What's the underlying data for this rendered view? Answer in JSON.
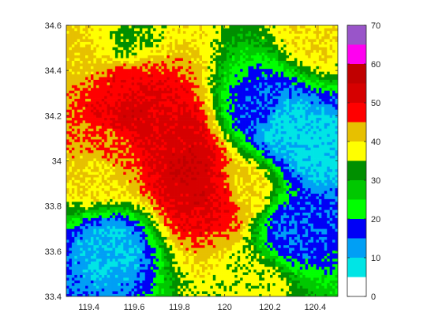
{
  "chart_data": {
    "type": "heatmap",
    "title": "",
    "xlabel": "",
    "ylabel": "",
    "xlim": [
      119.3,
      120.5
    ],
    "ylim": [
      33.4,
      34.6
    ],
    "x_ticks": [
      "119.4",
      "119.6",
      "119.8",
      "120",
      "120.2",
      "120.4"
    ],
    "x_tick_values": [
      119.4,
      119.6,
      119.8,
      120.0,
      120.2,
      120.4
    ],
    "y_ticks": [
      "33.4",
      "33.6",
      "33.8",
      "34",
      "34.2",
      "34.4",
      "34.6"
    ],
    "y_tick_values": [
      33.4,
      33.6,
      33.8,
      34.0,
      34.2,
      34.4,
      34.6
    ],
    "colorbar": {
      "range": [
        0,
        70
      ],
      "ticks": [
        "0",
        "10",
        "20",
        "30",
        "40",
        "50",
        "60",
        "70"
      ],
      "tick_values": [
        0,
        10,
        20,
        30,
        40,
        50,
        60,
        70
      ],
      "levels": [
        {
          "from": 0,
          "to": 5,
          "color": "#ffffff"
        },
        {
          "from": 5,
          "to": 10,
          "color": "#00e5e5"
        },
        {
          "from": 10,
          "to": 15,
          "color": "#009ff5"
        },
        {
          "from": 15,
          "to": 20,
          "color": "#0000f6"
        },
        {
          "from": 20,
          "to": 25,
          "color": "#00ff00"
        },
        {
          "from": 25,
          "to": 30,
          "color": "#00c800"
        },
        {
          "from": 30,
          "to": 35,
          "color": "#008f00"
        },
        {
          "from": 35,
          "to": 40,
          "color": "#ffff00"
        },
        {
          "from": 40,
          "to": 45,
          "color": "#e7c000"
        },
        {
          "from": 45,
          "to": 50,
          "color": "#ff0000"
        },
        {
          "from": 50,
          "to": 55,
          "color": "#d60000"
        },
        {
          "from": 55,
          "to": 60,
          "color": "#c00000"
        },
        {
          "from": 60,
          "to": 65,
          "color": "#ff00f0"
        },
        {
          "from": 65,
          "to": 70,
          "color": "#9955c9"
        }
      ]
    },
    "cells": [
      {
        "lon": 119.38,
        "lat": 34.52,
        "value": 42
      },
      {
        "lon": 119.45,
        "lat": 34.55,
        "value": 38
      },
      {
        "lon": 119.55,
        "lat": 34.56,
        "value": 33
      },
      {
        "lon": 120.42,
        "lat": 34.56,
        "value": 40
      },
      {
        "lon": 119.55,
        "lat": 34.32,
        "value": 48
      },
      {
        "lon": 119.6,
        "lat": 34.22,
        "value": 53
      },
      {
        "lon": 119.66,
        "lat": 34.18,
        "value": 51
      },
      {
        "lon": 119.78,
        "lat": 34.1,
        "value": 52
      },
      {
        "lon": 119.84,
        "lat": 33.98,
        "value": 54
      },
      {
        "lon": 119.9,
        "lat": 33.86,
        "value": 53
      },
      {
        "lon": 119.98,
        "lat": 33.84,
        "value": 49
      },
      {
        "lon": 120.08,
        "lat": 33.88,
        "value": 40
      },
      {
        "lon": 119.5,
        "lat": 34.05,
        "value": 46
      },
      {
        "lon": 119.45,
        "lat": 33.95,
        "value": 40
      },
      {
        "lon": 120.15,
        "lat": 34.22,
        "value": 16
      },
      {
        "lon": 120.25,
        "lat": 34.15,
        "value": 8
      },
      {
        "lon": 120.4,
        "lat": 34.05,
        "value": 8
      },
      {
        "lon": 120.3,
        "lat": 33.7,
        "value": 15
      },
      {
        "lon": 119.5,
        "lat": 33.62,
        "value": 10
      },
      {
        "lon": 120.12,
        "lat": 33.45,
        "value": 37
      }
    ]
  }
}
